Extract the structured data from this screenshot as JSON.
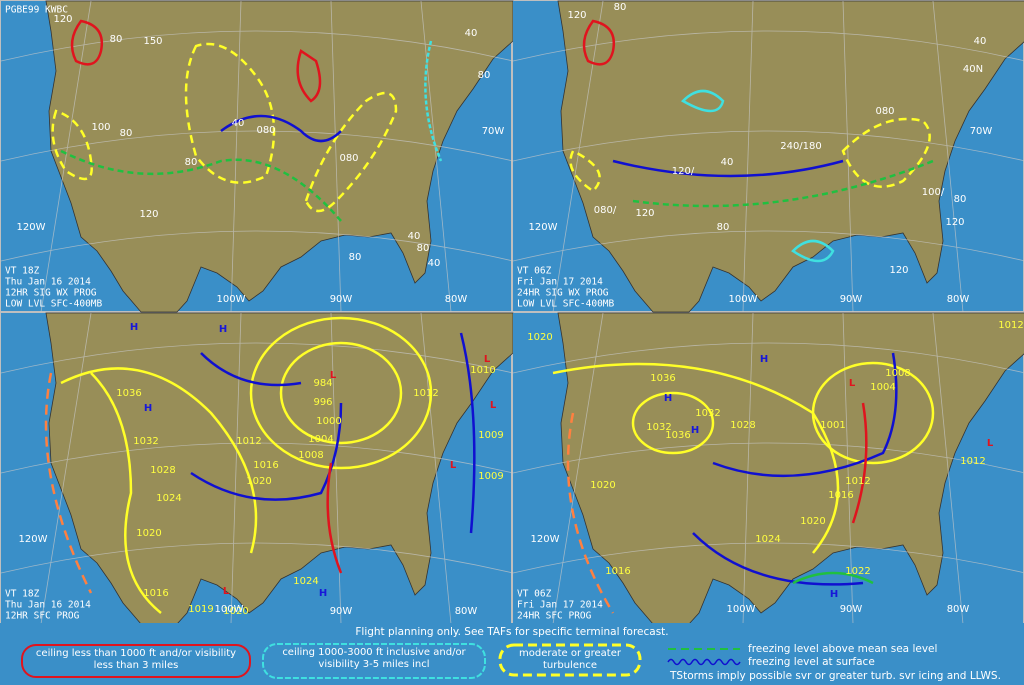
{
  "panels": [
    {
      "id": "PGBE99 KWBC",
      "header_lines": [
        "VT 18Z",
        "Thu Jan 16 2014",
        "12HR SIG WX PROG",
        "LOW LVL SFC-400MB"
      ],
      "labels": [
        "120",
        "80",
        "150",
        "100",
        "80",
        "40",
        "080",
        "080",
        "80",
        "120",
        "40",
        "80",
        "40",
        "80",
        "40",
        "80",
        "120W",
        "100W",
        "90W",
        "80W",
        "70W"
      ]
    },
    {
      "header_lines": [
        "VT 06Z",
        "Fri Jan 17 2014",
        "24HR SIG WX PROG",
        "LOW LVL SFC-400MB"
      ],
      "labels": [
        "120",
        "80",
        "120/",
        "40",
        "240/180",
        "080",
        "100/",
        "80",
        "120",
        "120",
        "80",
        "120",
        "080/",
        "40",
        "40N",
        "70W",
        "120W",
        "100W",
        "90W",
        "80W"
      ]
    },
    {
      "header_lines": [
        "VT 18Z",
        "Thu Jan 16 2014",
        "12HR SFC PROG"
      ],
      "labels": [
        "1036",
        "1032",
        "1028",
        "1024",
        "1020",
        "1016",
        "1012",
        "1016",
        "1020",
        "1004",
        "1000",
        "996",
        "984",
        "1008",
        "1012",
        "1010",
        "1009",
        "1009",
        "1024",
        "1019",
        "1020",
        "120W",
        "100W",
        "90W",
        "80W",
        "H",
        "H",
        "H",
        "L",
        "L",
        "L",
        "L",
        "L",
        "H"
      ]
    },
    {
      "header_lines": [
        "VT 06Z",
        "Fri Jan 17 2014",
        "24HR SFC PROG"
      ],
      "labels": [
        "1020",
        "1036",
        "1032",
        "1028",
        "1032",
        "1036",
        "1020",
        "1016",
        "1024",
        "1020",
        "1016",
        "1012",
        "1004",
        "1008",
        "1001",
        "1012",
        "1022",
        "1012",
        "120W",
        "100W",
        "90W",
        "80W",
        "H",
        "H",
        "H",
        "L",
        "L",
        "H"
      ]
    }
  ],
  "legend": {
    "note": "Flight planning only. See TAFs for specific terminal forecast.",
    "ifr": "ceiling less than 1000 ft and/or visibility less than 3 miles",
    "mvfr": "ceiling 1000-3000 ft inclusive and/or visibility 3-5 miles incl",
    "turbulence": "moderate or greater turbulence",
    "freezing_msl": "freezing level above mean sea level",
    "freezing_sfc": "freezing level at surface",
    "tstorms": "TStorms imply possible svr or greater turb. svr icing and LLWS."
  }
}
